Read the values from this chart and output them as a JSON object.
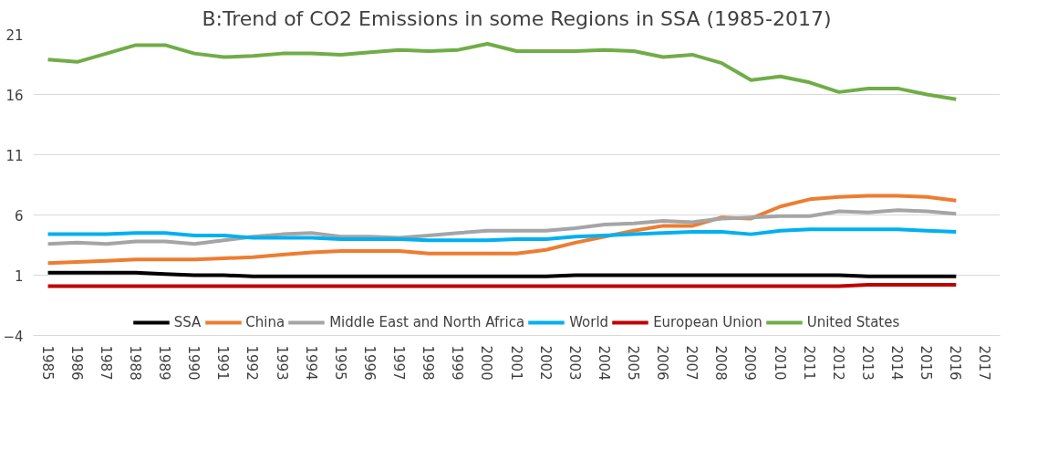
{
  "chart_data": {
    "type": "line",
    "title": "B:Trend of CO2 Emissions in some Regions in SSA (1985-2017)",
    "categories": [
      "1985",
      "1986",
      "1987",
      "1988",
      "1989",
      "1990",
      "1991",
      "1992",
      "1993",
      "1994",
      "1995",
      "1996",
      "1997",
      "1998",
      "1999",
      "2000",
      "2001",
      "2002",
      "2003",
      "2004",
      "2005",
      "2006",
      "2007",
      "2008",
      "2009",
      "2010",
      "2011",
      "2012",
      "2013",
      "2014",
      "2015",
      "2016",
      "2017"
    ],
    "series": [
      {
        "name": "SSA",
        "color": "#000000",
        "values": [
          1.2,
          1.2,
          1.2,
          1.2,
          1.1,
          1.0,
          1.0,
          0.9,
          0.9,
          0.9,
          0.9,
          0.9,
          0.9,
          0.9,
          0.9,
          0.9,
          0.9,
          0.9,
          1.0,
          1.0,
          1.0,
          1.0,
          1.0,
          1.0,
          1.0,
          1.0,
          1.0,
          1.0,
          0.9,
          0.9,
          0.9,
          0.9,
          null
        ]
      },
      {
        "name": "China",
        "color": "#ed7d31",
        "values": [
          2.0,
          2.1,
          2.2,
          2.3,
          2.3,
          2.3,
          2.4,
          2.5,
          2.7,
          2.9,
          3.0,
          3.0,
          3.0,
          2.8,
          2.8,
          2.8,
          2.8,
          3.1,
          3.7,
          4.2,
          4.7,
          5.1,
          5.1,
          5.8,
          5.7,
          6.7,
          7.3,
          7.5,
          7.6,
          7.6,
          7.5,
          7.2,
          null
        ]
      },
      {
        "name": "Middle East and North Africa",
        "color": "#a5a5a5",
        "values": [
          3.6,
          3.7,
          3.6,
          3.8,
          3.8,
          3.6,
          3.9,
          4.2,
          4.4,
          4.5,
          4.2,
          4.2,
          4.1,
          4.3,
          4.5,
          4.7,
          4.7,
          4.7,
          4.9,
          5.2,
          5.3,
          5.5,
          5.4,
          5.7,
          5.8,
          5.9,
          5.9,
          6.3,
          6.2,
          6.4,
          6.3,
          6.1,
          null
        ]
      },
      {
        "name": "World",
        "color": "#00b0f0",
        "values": [
          4.4,
          4.4,
          4.4,
          4.5,
          4.5,
          4.3,
          4.3,
          4.1,
          4.1,
          4.1,
          4.0,
          4.0,
          4.0,
          3.9,
          3.9,
          3.9,
          4.0,
          4.0,
          4.2,
          4.3,
          4.4,
          4.5,
          4.6,
          4.6,
          4.4,
          4.7,
          4.8,
          4.8,
          4.8,
          4.8,
          4.7,
          4.6,
          null
        ]
      },
      {
        "name": "European Union",
        "color": "#c00000",
        "values": [
          0.1,
          0.1,
          0.1,
          0.1,
          0.1,
          0.1,
          0.1,
          0.1,
          0.1,
          0.1,
          0.1,
          0.1,
          0.1,
          0.1,
          0.1,
          0.1,
          0.1,
          0.1,
          0.1,
          0.1,
          0.1,
          0.1,
          0.1,
          0.1,
          0.1,
          0.1,
          0.1,
          0.1,
          0.2,
          0.2,
          0.2,
          0.2,
          null
        ]
      },
      {
        "name": "United States",
        "color": "#70ad47",
        "values": [
          18.9,
          18.7,
          19.4,
          20.1,
          20.1,
          19.4,
          19.1,
          19.2,
          19.4,
          19.4,
          19.3,
          19.5,
          19.7,
          19.6,
          19.7,
          20.2,
          19.6,
          19.6,
          19.6,
          19.7,
          19.6,
          19.1,
          19.3,
          18.6,
          17.2,
          17.5,
          17.0,
          16.2,
          16.5,
          16.5,
          16.0,
          15.6,
          null
        ]
      }
    ],
    "ylim": [
      -4,
      21
    ],
    "yticks": [
      -4,
      1,
      6,
      11,
      16,
      21
    ],
    "grid": "y",
    "legend": "bottom",
    "line_style": "solid",
    "marker": "none"
  }
}
